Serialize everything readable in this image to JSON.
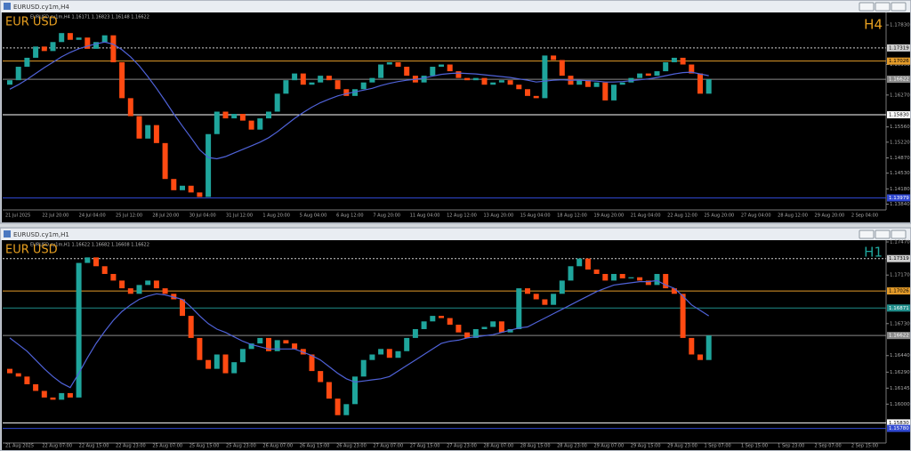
{
  "chart_data": [
    {
      "type": "candlestick",
      "window_title": "EURUSD.cy1m,H4",
      "symbol": "EUR USD",
      "timeframe": "H4",
      "info": "EURUSD.cy1m,H4 1.16171 1.16823 1.16148 1.16622",
      "up_color": "#1fa59c",
      "down_color": "#ff4a12",
      "ma_color": "#4f62d8",
      "timeframe_color": "#e8a020",
      "first_open": 1.165,
      "closes": [
        1.166,
        1.169,
        1.171,
        1.1735,
        1.1725,
        1.1745,
        1.1765,
        1.175,
        1.1755,
        1.173,
        1.1745,
        1.176,
        1.17,
        1.162,
        1.158,
        1.153,
        1.156,
        1.152,
        1.144,
        1.1415,
        1.1425,
        1.141,
        1.14,
        1.154,
        1.159,
        1.1575,
        1.1585,
        1.157,
        1.155,
        1.1575,
        1.159,
        1.163,
        1.166,
        1.1675,
        1.165,
        1.1655,
        1.167,
        1.166,
        1.164,
        1.1625,
        1.164,
        1.1655,
        1.1665,
        1.1695,
        1.17,
        1.169,
        1.167,
        1.1655,
        1.167,
        1.169,
        1.1695,
        1.168,
        1.1665,
        1.166,
        1.1665,
        1.165,
        1.1655,
        1.166,
        1.165,
        1.164,
        1.1625,
        1.162,
        1.1715,
        1.1705,
        1.167,
        1.165,
        1.166,
        1.1645,
        1.1655,
        1.1615,
        1.165,
        1.1655,
        1.1665,
        1.1675,
        1.167,
        1.168,
        1.17,
        1.171,
        1.1695,
        1.1675,
        1.163,
        1.16622
      ],
      "ma": [
        1.164,
        1.165,
        1.1662,
        1.1675,
        1.1688,
        1.17,
        1.1712,
        1.1722,
        1.173,
        1.1736,
        1.1741,
        1.1745,
        1.174,
        1.1728,
        1.1712,
        1.1692,
        1.1668,
        1.1642,
        1.1614,
        1.1585,
        1.1558,
        1.1532,
        1.1505,
        1.1488,
        1.1485,
        1.149,
        1.1498,
        1.1506,
        1.1514,
        1.1522,
        1.1532,
        1.1545,
        1.156,
        1.1575,
        1.1588,
        1.16,
        1.161,
        1.1618,
        1.1625,
        1.163,
        1.1634,
        1.1638,
        1.1642,
        1.1648,
        1.1653,
        1.1657,
        1.166,
        1.1662,
        1.1665,
        1.1669,
        1.1673,
        1.1675,
        1.1676,
        1.1675,
        1.1674,
        1.1672,
        1.167,
        1.1668,
        1.1666,
        1.1663,
        1.166,
        1.1656,
        1.1658,
        1.166,
        1.1661,
        1.166,
        1.166,
        1.1659,
        1.1658,
        1.1656,
        1.1656,
        1.1657,
        1.1659,
        1.1661,
        1.1663,
        1.1666,
        1.167,
        1.1674,
        1.1677,
        1.1678,
        1.1674,
        1.167
      ],
      "ylim": [
        1.1379,
        1.1803
      ],
      "yticks": [
        {
          "value": 1.1783,
          "label": "1.17830"
        },
        {
          "value": 1.1695,
          "label": "1.16950"
        },
        {
          "value": 1.1627,
          "label": "1.16270"
        },
        {
          "value": 1.1556,
          "label": "1.15560"
        },
        {
          "value": 1.1522,
          "label": "1.15220"
        },
        {
          "value": 1.1487,
          "label": "1.14870"
        },
        {
          "value": 1.1453,
          "label": "1.14530"
        },
        {
          "value": 1.1418,
          "label": "1.14180"
        },
        {
          "value": 1.1384,
          "label": "1.13840"
        }
      ],
      "levels": [
        {
          "value": 1.17319,
          "label": "1.17319",
          "color": "#cfcfcf",
          "style": "dotted"
        },
        {
          "value": 1.17026,
          "label": "1.17026",
          "color": "#e39b2a",
          "style": "solid"
        },
        {
          "value": 1.16622,
          "label": "1.16622",
          "color": "#8a8a8a",
          "style": "solid"
        },
        {
          "value": 1.1583,
          "label": "1.15830",
          "color": "#ffffff",
          "style": "solid"
        },
        {
          "value": 1.13979,
          "label": "1.13979",
          "color": "#3048d0",
          "style": "solid"
        }
      ],
      "x_labels": [
        "21 Jul 2025",
        "22 Jul 20:00",
        "24 Jul 04:00",
        "25 Jul 12:00",
        "28 Jul 20:00",
        "30 Jul 04:00",
        "31 Jul 12:00",
        "1 Aug 20:00",
        "5 Aug 04:00",
        "6 Aug 12:00",
        "7 Aug 20:00",
        "11 Aug 04:00",
        "12 Aug 12:00",
        "13 Aug 20:00",
        "15 Aug 04:00",
        "18 Aug 12:00",
        "19 Aug 20:00",
        "21 Aug 04:00",
        "22 Aug 12:00",
        "25 Aug 20:00",
        "27 Aug 04:00",
        "28 Aug 12:00",
        "29 Aug 20:00",
        "2 Sep 04:00"
      ]
    },
    {
      "type": "candlestick",
      "window_title": "EURUSD.cy1m,H1",
      "symbol": "EUR USD",
      "timeframe": "H1",
      "info": "EURUSD.cy1m,H1 1.16622 1.16682 1.16608 1.16622",
      "up_color": "#1fa59c",
      "down_color": "#ff4a12",
      "ma_color": "#4f62d8",
      "timeframe_color": "#1fa59c",
      "first_open": 1.1632,
      "closes": [
        1.1628,
        1.1625,
        1.1618,
        1.1612,
        1.1606,
        1.1604,
        1.161,
        1.1606,
        1.1728,
        1.1733,
        1.1725,
        1.1718,
        1.1712,
        1.1705,
        1.17,
        1.1708,
        1.1712,
        1.1705,
        1.17,
        1.1695,
        1.168,
        1.166,
        1.164,
        1.1632,
        1.1645,
        1.1628,
        1.1638,
        1.165,
        1.1655,
        1.166,
        1.1648,
        1.1658,
        1.1655,
        1.165,
        1.1645,
        1.163,
        1.162,
        1.1605,
        1.159,
        1.16,
        1.1625,
        1.164,
        1.1645,
        1.165,
        1.1642,
        1.1648,
        1.166,
        1.1668,
        1.1675,
        1.168,
        1.1678,
        1.1672,
        1.1665,
        1.166,
        1.1668,
        1.167,
        1.1675,
        1.1665,
        1.1668,
        1.1705,
        1.17,
        1.1695,
        1.169,
        1.17,
        1.1712,
        1.1725,
        1.1732,
        1.1722,
        1.1718,
        1.1712,
        1.1718,
        1.1714,
        1.1715,
        1.1712,
        1.1708,
        1.1718,
        1.1705,
        1.17,
        1.166,
        1.1645,
        1.164,
        1.16622
      ],
      "ma": [
        1.166,
        1.1654,
        1.1648,
        1.164,
        1.1632,
        1.1625,
        1.1619,
        1.1615,
        1.1628,
        1.1642,
        1.1655,
        1.1666,
        1.1676,
        1.1684,
        1.169,
        1.1695,
        1.1698,
        1.17,
        1.1699,
        1.1697,
        1.1695,
        1.1688,
        1.168,
        1.1673,
        1.1668,
        1.1665,
        1.1661,
        1.1657,
        1.1654,
        1.1652,
        1.165,
        1.165,
        1.165,
        1.165,
        1.1647,
        1.1644,
        1.164,
        1.1634,
        1.1628,
        1.1623,
        1.162,
        1.1621,
        1.1622,
        1.1623,
        1.1625,
        1.163,
        1.1635,
        1.164,
        1.1645,
        1.165,
        1.1655,
        1.1657,
        1.1658,
        1.166,
        1.1661,
        1.1662,
        1.1663,
        1.1665,
        1.1667,
        1.1669,
        1.167,
        1.1674,
        1.1678,
        1.1682,
        1.1686,
        1.169,
        1.1694,
        1.1698,
        1.1702,
        1.1705,
        1.1708,
        1.1709,
        1.171,
        1.1711,
        1.1711,
        1.1712,
        1.1708,
        1.1705,
        1.1698,
        1.169,
        1.1685,
        1.168
      ],
      "ylim": [
        1.1568,
        1.1747
      ],
      "yticks": [
        {
          "value": 1.1747,
          "label": "1.17470"
        },
        {
          "value": 1.1717,
          "label": "1.17170"
        },
        {
          "value": 1.1673,
          "label": "1.16730"
        },
        {
          "value": 1.1644,
          "label": "1.16440"
        },
        {
          "value": 1.1629,
          "label": "1.16290"
        },
        {
          "value": 1.16145,
          "label": "1.16145"
        },
        {
          "value": 1.16,
          "label": "1.16000"
        }
      ],
      "levels": [
        {
          "value": 1.17319,
          "label": "1.17319",
          "color": "#cfcfcf",
          "style": "dotted"
        },
        {
          "value": 1.17026,
          "label": "1.17026",
          "color": "#e39b2a",
          "style": "solid"
        },
        {
          "value": 1.16871,
          "label": "1.16871",
          "color": "#1f8d8a",
          "style": "solid"
        },
        {
          "value": 1.16622,
          "label": "1.16622",
          "color": "#8a8a8a",
          "style": "solid"
        },
        {
          "value": 1.1583,
          "label": "1.15830",
          "color": "#ffffff",
          "style": "solid"
        },
        {
          "value": 1.1578,
          "label": "1.15780",
          "color": "#3048d0",
          "style": "solid"
        }
      ],
      "x_labels": [
        "21 Aug 2025",
        "22 Aug 07:00",
        "22 Aug 15:00",
        "22 Aug 23:00",
        "25 Aug 07:00",
        "25 Aug 15:00",
        "25 Aug 23:00",
        "26 Aug 07:00",
        "26 Aug 15:00",
        "26 Aug 23:00",
        "27 Aug 07:00",
        "27 Aug 15:00",
        "27 Aug 23:00",
        "28 Aug 07:00",
        "28 Aug 15:00",
        "28 Aug 23:00",
        "29 Aug 07:00",
        "29 Aug 15:00",
        "29 Aug 23:00",
        "1 Sep 07:00",
        "1 Sep 15:00",
        "1 Sep 23:00",
        "2 Sep 07:00",
        "2 Sep 15:00"
      ]
    }
  ]
}
